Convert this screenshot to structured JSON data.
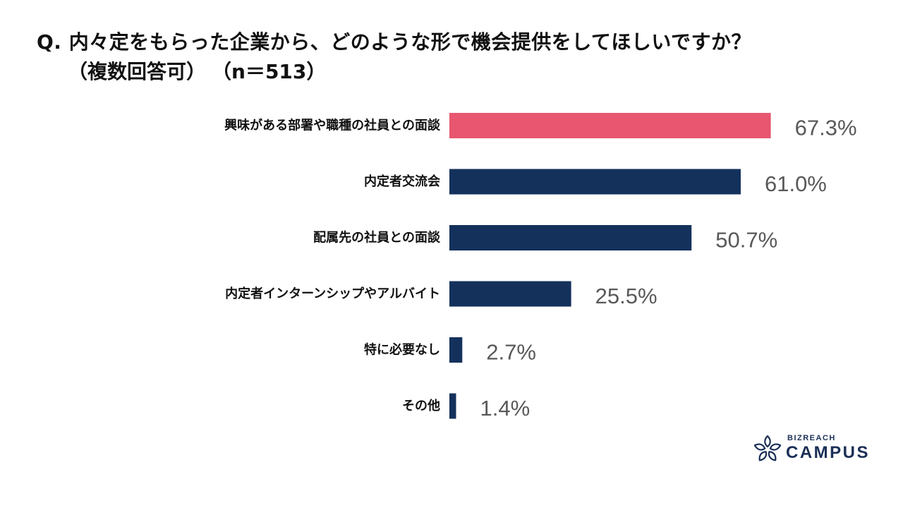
{
  "question": {
    "title": "Q. 内々定をもらった企業から、どのような形で機会提供をしてほしいですか？",
    "note": "（複数回答可）",
    "sample": "（n＝513）"
  },
  "chart_data": {
    "type": "bar",
    "orientation": "horizontal",
    "categories": [
      "興味がある部署や職種の社員との面談",
      "内定者交流会",
      "配属先の社員との面談",
      "内定者インターンシップやアルバイト",
      "特に必要なし",
      "その他"
    ],
    "values": [
      67.3,
      61.0,
      50.7,
      25.5,
      2.7,
      1.4
    ],
    "value_labels": [
      "67.3%",
      "61.0%",
      "50.7%",
      "25.5%",
      "2.7%",
      "1.4%"
    ],
    "bar_colors": [
      "#e8566f",
      "#14315c",
      "#14315c",
      "#14315c",
      "#14315c",
      "#14315c"
    ],
    "xlim": [
      0,
      100
    ],
    "grid": false,
    "legend": "none",
    "title": "",
    "xlabel": "",
    "ylabel": ""
  },
  "logo": {
    "small": "BIZREACH",
    "big": "CAMPUS",
    "icon": "flower-icon",
    "color": "#1b2f57"
  }
}
